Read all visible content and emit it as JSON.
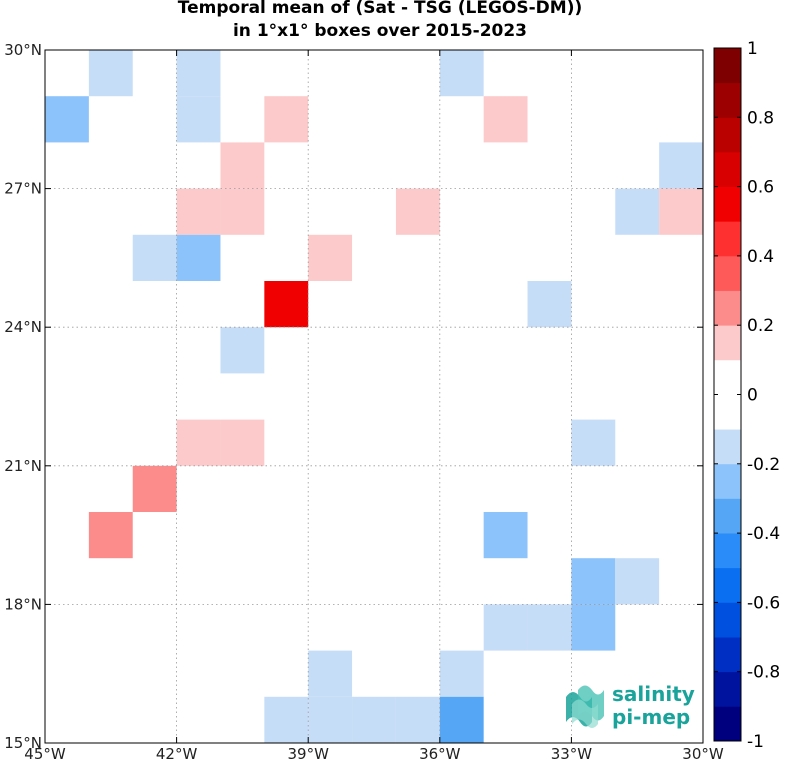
{
  "title_line1": "Temporal mean of (Sat - TSG (LEGOS-DM))",
  "title_line2": "in 1°x1° boxes over 2015-2023",
  "logo": {
    "line1": "salinity",
    "line2": "pi-mep"
  },
  "chart_data": {
    "type": "heatmap",
    "xlim": [
      -45,
      -30
    ],
    "ylim": [
      15,
      30
    ],
    "x_ticks": [
      {
        "value": -45,
        "label": "45°W"
      },
      {
        "value": -42,
        "label": "42°W"
      },
      {
        "value": -39,
        "label": "39°W"
      },
      {
        "value": -36,
        "label": "36°W"
      },
      {
        "value": -33,
        "label": "33°W"
      },
      {
        "value": -30,
        "label": "30°W"
      }
    ],
    "y_ticks": [
      {
        "value": 15,
        "label": "15°N"
      },
      {
        "value": 18,
        "label": "18°N"
      },
      {
        "value": 21,
        "label": "21°N"
      },
      {
        "value": 24,
        "label": "24°N"
      },
      {
        "value": 27,
        "label": "27°N"
      },
      {
        "value": 30,
        "label": "30°N"
      }
    ],
    "grid": true,
    "colorbar": {
      "range": [
        -1,
        1
      ],
      "ticks": [
        "1",
        "0.8",
        "0.6",
        "0.4",
        "0.2",
        "0",
        "-0.2",
        "-0.4",
        "-0.6",
        "-0.8",
        "-1"
      ],
      "colors": [
        "#00007f",
        "#00139e",
        "#0030c3",
        "#0050e0",
        "#0a6ff0",
        "#2a8cf8",
        "#55a6f5",
        "#8dc3fb",
        "#c6ddf8",
        "#ffffff",
        "#ffffff",
        "#fccaca",
        "#fc8c8c",
        "#ff5a5a",
        "#ff3030",
        "#f00000",
        "#d80000",
        "#bb0000",
        "#9c0000",
        "#7f0000"
      ]
    },
    "cells": [
      {
        "lon": -43.5,
        "lat": 29.5,
        "value": -0.15
      },
      {
        "lon": -41.5,
        "lat": 29.5,
        "value": -0.15
      },
      {
        "lon": -35.5,
        "lat": 29.5,
        "value": -0.15
      },
      {
        "lon": -44.5,
        "lat": 28.5,
        "value": -0.3
      },
      {
        "lon": -41.5,
        "lat": 28.5,
        "value": -0.15
      },
      {
        "lon": -39.5,
        "lat": 28.5,
        "value": 0.15
      },
      {
        "lon": -34.5,
        "lat": 28.5,
        "value": 0.15
      },
      {
        "lon": -40.5,
        "lat": 27.5,
        "value": 0.15
      },
      {
        "lon": -30.5,
        "lat": 27.5,
        "value": -0.15
      },
      {
        "lon": -41.5,
        "lat": 26.5,
        "value": 0.15
      },
      {
        "lon": -40.5,
        "lat": 26.5,
        "value": 0.15
      },
      {
        "lon": -36.5,
        "lat": 26.5,
        "value": 0.15
      },
      {
        "lon": -31.5,
        "lat": 26.5,
        "value": -0.15
      },
      {
        "lon": -30.5,
        "lat": 26.5,
        "value": 0.15
      },
      {
        "lon": -42.5,
        "lat": 25.5,
        "value": -0.15
      },
      {
        "lon": -41.5,
        "lat": 25.5,
        "value": -0.25
      },
      {
        "lon": -38.5,
        "lat": 25.5,
        "value": 0.15
      },
      {
        "lon": -39.5,
        "lat": 24.5,
        "value": 0.55
      },
      {
        "lon": -33.5,
        "lat": 24.5,
        "value": -0.15
      },
      {
        "lon": -40.5,
        "lat": 23.5,
        "value": -0.15
      },
      {
        "lon": -41.5,
        "lat": 21.5,
        "value": 0.15
      },
      {
        "lon": -40.5,
        "lat": 21.5,
        "value": 0.15
      },
      {
        "lon": -32.5,
        "lat": 21.5,
        "value": -0.15
      },
      {
        "lon": -42.5,
        "lat": 20.5,
        "value": 0.25
      },
      {
        "lon": -43.5,
        "lat": 19.5,
        "value": 0.25
      },
      {
        "lon": -34.5,
        "lat": 19.5,
        "value": -0.3
      },
      {
        "lon": -32.5,
        "lat": 18.5,
        "value": -0.25
      },
      {
        "lon": -31.5,
        "lat": 18.5,
        "value": -0.15
      },
      {
        "lon": -34.5,
        "lat": 17.5,
        "value": -0.15
      },
      {
        "lon": -33.5,
        "lat": 17.5,
        "value": -0.15
      },
      {
        "lon": -32.5,
        "lat": 17.5,
        "value": -0.25
      },
      {
        "lon": -38.5,
        "lat": 16.5,
        "value": -0.15
      },
      {
        "lon": -35.5,
        "lat": 16.5,
        "value": -0.15
      },
      {
        "lon": -39.5,
        "lat": 15.5,
        "value": -0.15
      },
      {
        "lon": -38.5,
        "lat": 15.5,
        "value": -0.15
      },
      {
        "lon": -37.5,
        "lat": 15.5,
        "value": -0.15
      },
      {
        "lon": -36.5,
        "lat": 15.5,
        "value": -0.15
      },
      {
        "lon": -35.5,
        "lat": 15.5,
        "value": -0.35
      }
    ]
  }
}
